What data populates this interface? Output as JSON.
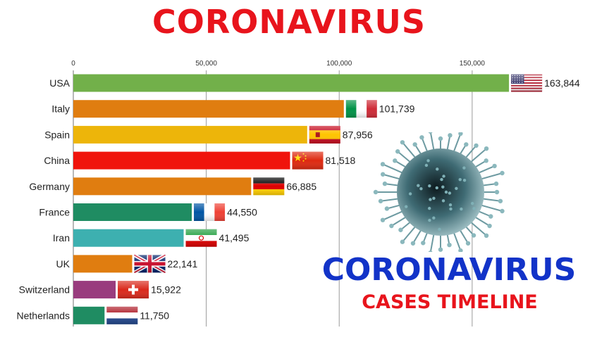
{
  "header": {
    "title": "CORONAVIRUS"
  },
  "promo": {
    "title": "CORONAVIRUS",
    "subtitle": "CASES TIMELINE"
  },
  "chart_data": {
    "type": "bar",
    "orientation": "horizontal",
    "categories": [
      "USA",
      "Italy",
      "Spain",
      "China",
      "Germany",
      "France",
      "Iran",
      "UK",
      "Switzerland",
      "Netherlands"
    ],
    "values": [
      163844,
      101739,
      87956,
      81518,
      66885,
      44550,
      41495,
      22141,
      15922,
      11750
    ],
    "value_labels": [
      "163,844",
      "101,739",
      "87,956",
      "81,518",
      "66,885",
      "44,550",
      "41,495",
      "22,141",
      "15,922",
      "11,750"
    ],
    "bar_colors": [
      "#72b04a",
      "#e07d10",
      "#edb50a",
      "#f0140c",
      "#e07d10",
      "#1f8c62",
      "#3db0b0",
      "#e07d10",
      "#993c7e",
      "#1f8c62"
    ],
    "flags": [
      "usa-flag",
      "italy-flag",
      "spain-flag",
      "china-flag",
      "germany-flag",
      "france-flag",
      "iran-flag",
      "uk-flag",
      "switzerland-flag",
      "netherlands-flag"
    ],
    "x_ticks": [
      0,
      50000,
      100000,
      150000
    ],
    "x_tick_labels": [
      "0",
      "50,000",
      "100,000",
      "150,000"
    ],
    "xlim": [
      0,
      167000
    ],
    "grid": true,
    "title": "",
    "xlabel": "",
    "ylabel": ""
  }
}
